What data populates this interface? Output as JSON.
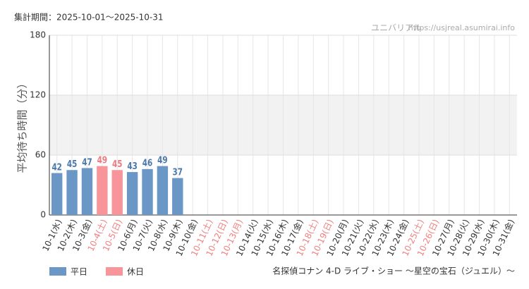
{
  "chart_data": {
    "type": "bar",
    "period": "集計期間：2025-10-01〜2025-10-31",
    "source_name": "ユニバリアル",
    "source_url": "https://usjreal.asumirai.info",
    "y_label": "平均待ち時間（分）",
    "subtitle": "名探偵コナン 4-D ライブ・ショー ～星空の宝石（ジュエル）～",
    "categories": [
      "10-1(水)",
      "10-2(木)",
      "10-3(金)",
      "10-4(土)",
      "10-5(日)",
      "10-6(月)",
      "10-7(火)",
      "10-8(水)",
      "10-9(木)",
      "10-10(金)",
      "10-11(土)",
      "10-12(日)",
      "10-13(月)",
      "10-14(火)",
      "10-15(水)",
      "10-16(木)",
      "10-17(金)",
      "10-18(土)",
      "10-19(日)",
      "10-20(月)",
      "10-21(火)",
      "10-22(水)",
      "10-23(木)",
      "10-24(金)",
      "10-25(土)",
      "10-26(日)",
      "10-27(月)",
      "10-28(火)",
      "10-29(水)",
      "10-30(木)",
      "10-31(金)"
    ],
    "holidays": [
      false,
      false,
      false,
      true,
      true,
      false,
      false,
      false,
      false,
      false,
      true,
      true,
      true,
      false,
      false,
      false,
      false,
      true,
      true,
      false,
      false,
      false,
      false,
      false,
      true,
      true,
      false,
      false,
      false,
      false,
      false
    ],
    "holiday_label_color": "#f08080",
    "series": [
      {
        "name": "平日",
        "color": "#6b97c7",
        "label_color": "#4a78aa",
        "values": [
          42,
          45,
          47,
          null,
          null,
          43,
          46,
          49,
          37,
          null,
          null,
          null,
          null,
          null,
          null,
          null,
          null,
          null,
          null,
          null,
          null,
          null,
          null,
          null,
          null,
          null,
          null,
          null,
          null,
          null,
          null
        ]
      },
      {
        "name": "休日",
        "color": "#f7959b",
        "label_color": "#ec7980",
        "values": [
          null,
          null,
          null,
          49,
          45,
          null,
          null,
          null,
          null,
          null,
          null,
          null,
          null,
          null,
          null,
          null,
          null,
          null,
          null,
          null,
          null,
          null,
          null,
          null,
          null,
          null,
          null,
          null,
          null,
          null,
          null
        ]
      }
    ],
    "shaded_band": {
      "from": 60,
      "to": 120,
      "color": "#f2f2f2"
    },
    "ylim": [
      0,
      180
    ],
    "yticks": [
      0,
      60,
      120,
      180
    ],
    "grid": true
  }
}
